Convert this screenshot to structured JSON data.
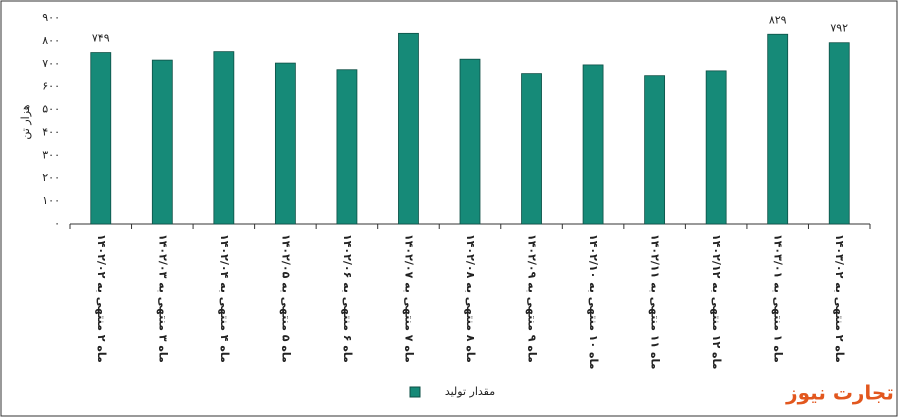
{
  "chart_data": {
    "type": "bar",
    "y_label": "هزار تن",
    "categories": [
      "ماه ۲ منتهی به ۱۴۰۲/۰۲",
      "ماه ۳ منتهی به ۱۴۰۲/۰۳",
      "ماه ۴ منتهی به ۱۴۰۲/۰۴",
      "ماه ۵ منتهی به ۱۴۰۲/۰۵",
      "ماه ۶ منتهی به ۱۴۰۲/۰۶",
      "ماه ۷ منتهی به ۱۴۰۲/۰۷",
      "ماه ۸ منتهی به ۱۴۰۲/۰۸",
      "ماه ۹ منتهی به ۱۴۰۲/۰۹",
      "ماه ۱۰ منتهی به ۱۴۰۲/۱۰",
      "ماه ۱۱ منتهی به ۱۴۰۲/۱۱",
      "ماه ۱۲ منتهی به ۱۴۰۲/۱۲",
      "ماه ۱ منتهی به ۱۴۰۳/۰۱",
      "ماه ۲ منتهی به ۱۴۰۳/۰۲"
    ],
    "series": [
      {
        "name": "مقدار تولید",
        "color": "#168a78",
        "values": [
          749,
          716,
          753,
          703,
          674,
          833,
          720,
          657,
          695,
          648,
          669,
          829,
          792
        ],
        "value_labels": [
          "۷۴۹",
          null,
          null,
          null,
          null,
          null,
          null,
          null,
          null,
          null,
          null,
          "۸۲۹",
          "۷۹۲"
        ]
      }
    ],
    "ylim": [
      0,
      900
    ],
    "yticks": [
      {
        "value": 0,
        "label": "۰"
      },
      {
        "value": 100,
        "label": "۱۰۰"
      },
      {
        "value": 200,
        "label": "۲۰۰"
      },
      {
        "value": 300,
        "label": "۳۰۰"
      },
      {
        "value": 400,
        "label": "۴۰۰"
      },
      {
        "value": 500,
        "label": "۵۰۰"
      },
      {
        "value": 600,
        "label": "۶۰۰"
      },
      {
        "value": 700,
        "label": "۷۰۰"
      },
      {
        "value": 800,
        "label": "۸۰۰"
      },
      {
        "value": 900,
        "label": "۹۰۰"
      }
    ],
    "grid": false,
    "legend": "bottom",
    "watermark": "تجارت نیوز"
  }
}
